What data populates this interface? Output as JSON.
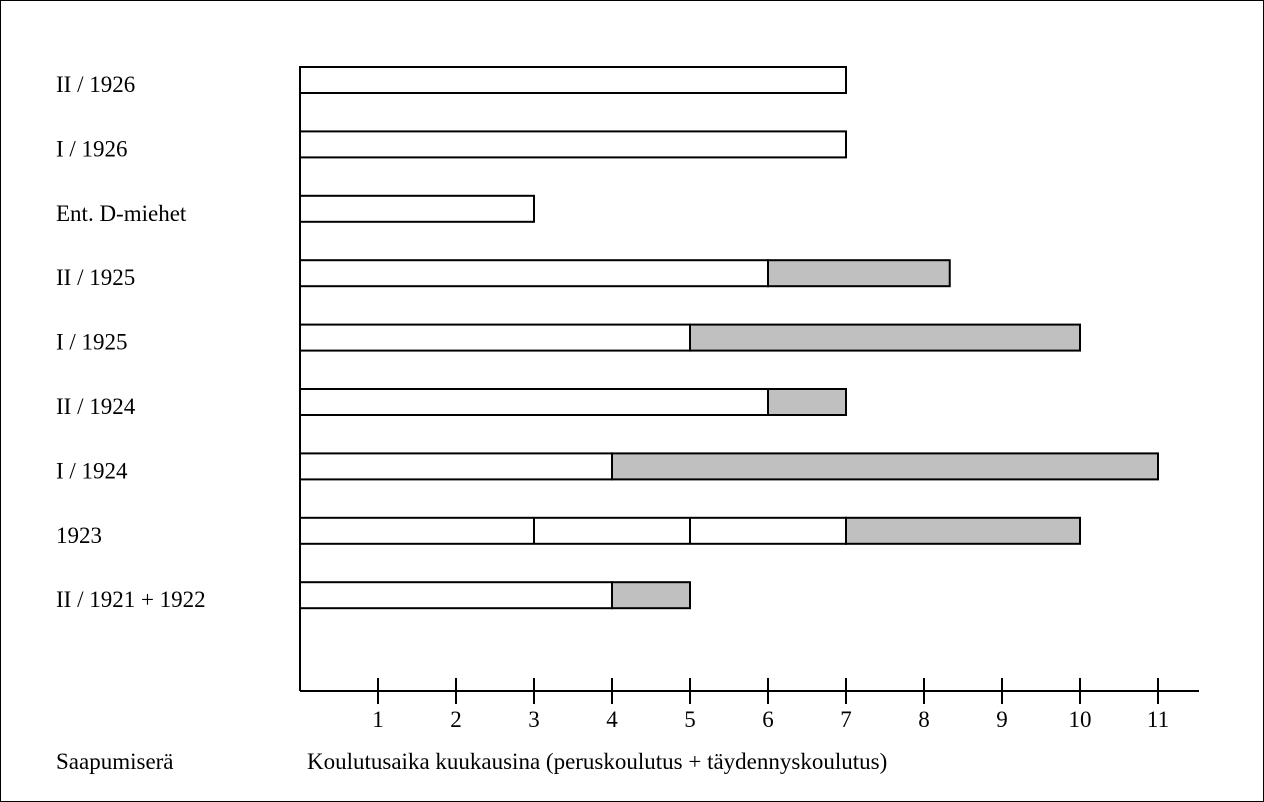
{
  "chart_data": {
    "type": "bar",
    "orientation": "horizontal",
    "stacked": true,
    "categories": [
      "II / 1926",
      "I / 1926",
      "Ent. D-miehet",
      "II / 1925",
      "I / 1925",
      "II / 1924",
      "I / 1924",
      "1923",
      "II / 1921 + 1922"
    ],
    "series": [
      {
        "color": "#ffffff",
        "values": [
          7,
          7,
          3,
          6,
          5,
          6,
          4,
          7,
          4
        ]
      },
      {
        "color": "#c0c0c0",
        "values": [
          0,
          0,
          0,
          2.33,
          5,
          1,
          7,
          3,
          1
        ]
      }
    ],
    "segment_dividers": {
      "1923": [
        3,
        5
      ]
    },
    "xlabel": "Koulutusaika kuukausina (peruskoulutus + täydennyskoulutus)",
    "ylabel": "Saapumiserä",
    "x_ticks": [
      "1",
      "2",
      "3",
      "4",
      "5",
      "6",
      "7",
      "8",
      "9",
      "10",
      "11"
    ],
    "xlim": [
      0,
      11.5
    ],
    "grid": false,
    "legend": "none"
  }
}
